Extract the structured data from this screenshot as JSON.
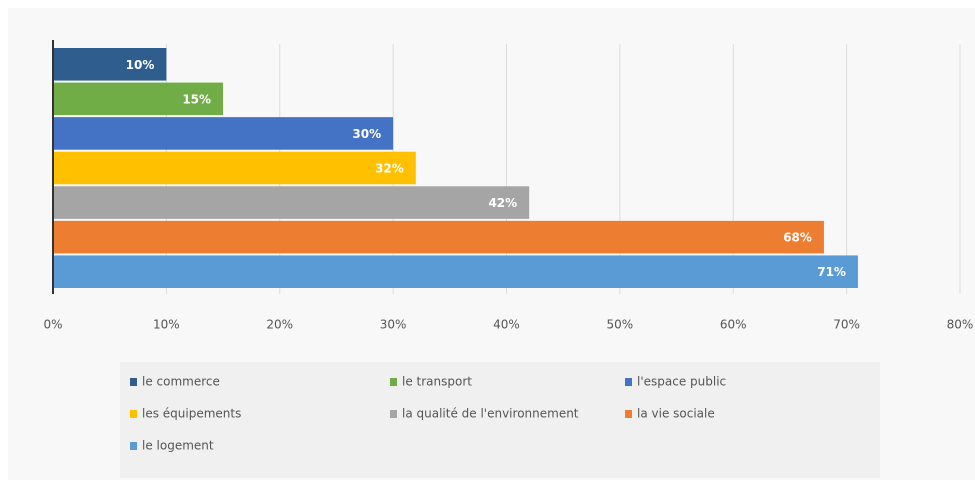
{
  "chart_data": {
    "type": "bar",
    "orientation": "horizontal",
    "series": [
      {
        "name": "le commerce",
        "color": "#2e5d8e",
        "values": [
          10
        ],
        "value_labels": [
          "10%"
        ]
      },
      {
        "name": "le transport",
        "color": "#70ad47",
        "values": [
          15
        ],
        "value_labels": [
          "15%"
        ]
      },
      {
        "name": "l'espace public",
        "color": "#4472c4",
        "values": [
          30
        ],
        "value_labels": [
          "30%"
        ]
      },
      {
        "name": "les équipements",
        "color": "#ffc000",
        "values": [
          32
        ],
        "value_labels": [
          "32%"
        ]
      },
      {
        "name": "la qualité de l'environnement",
        "color": "#a5a5a5",
        "values": [
          42
        ],
        "value_labels": [
          "42%"
        ]
      },
      {
        "name": "la vie sociale",
        "color": "#ed7d31",
        "values": [
          68
        ],
        "value_labels": [
          "68%"
        ]
      },
      {
        "name": "le logement",
        "color": "#5b9bd5",
        "values": [
          71
        ],
        "value_labels": [
          "71%"
        ]
      }
    ],
    "xlim": [
      0,
      80
    ],
    "xticks": [
      {
        "value": 0,
        "label": "0%"
      },
      {
        "value": 10,
        "label": "10%"
      },
      {
        "value": 20,
        "label": "20%"
      },
      {
        "value": 30,
        "label": "30%"
      },
      {
        "value": 40,
        "label": "40%"
      },
      {
        "value": 50,
        "label": "50%"
      },
      {
        "value": 60,
        "label": "60%"
      },
      {
        "value": 70,
        "label": "70%"
      },
      {
        "value": 80,
        "label": "80%"
      }
    ],
    "grid": true,
    "legend": "bottom"
  }
}
